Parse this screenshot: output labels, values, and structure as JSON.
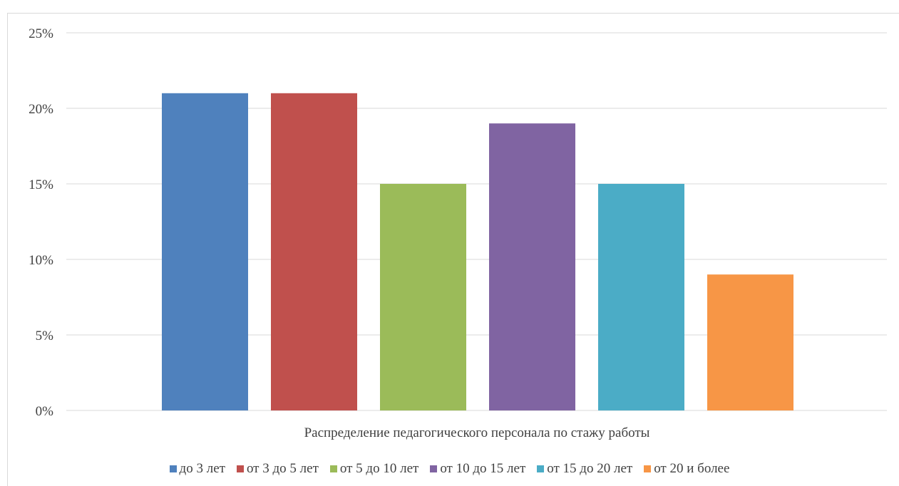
{
  "chart_data": {
    "type": "bar",
    "categories": [
      "Распределение педагогического персонала по стажу работы"
    ],
    "series": [
      {
        "name": "до 3 лет",
        "values": [
          21
        ],
        "color": "#4F81BD"
      },
      {
        "name": "от 3 до 5 лет",
        "values": [
          21
        ],
        "color": "#C0504D"
      },
      {
        "name": "от 5 до 10 лет",
        "values": [
          15
        ],
        "color": "#9BBB59"
      },
      {
        "name": "от 10 до 15 лет",
        "values": [
          19
        ],
        "color": "#8064A2"
      },
      {
        "name": "от 15 до 20 лет",
        "values": [
          15
        ],
        "color": "#4BACC6"
      },
      {
        "name": "от 20 и более",
        "values": [
          9
        ],
        "color": "#F79646"
      }
    ],
    "yticks": [
      "0%",
      "5%",
      "10%",
      "15%",
      "20%",
      "25%"
    ],
    "ylim": [
      0,
      25
    ],
    "grid": true,
    "legend_position": "bottom"
  }
}
